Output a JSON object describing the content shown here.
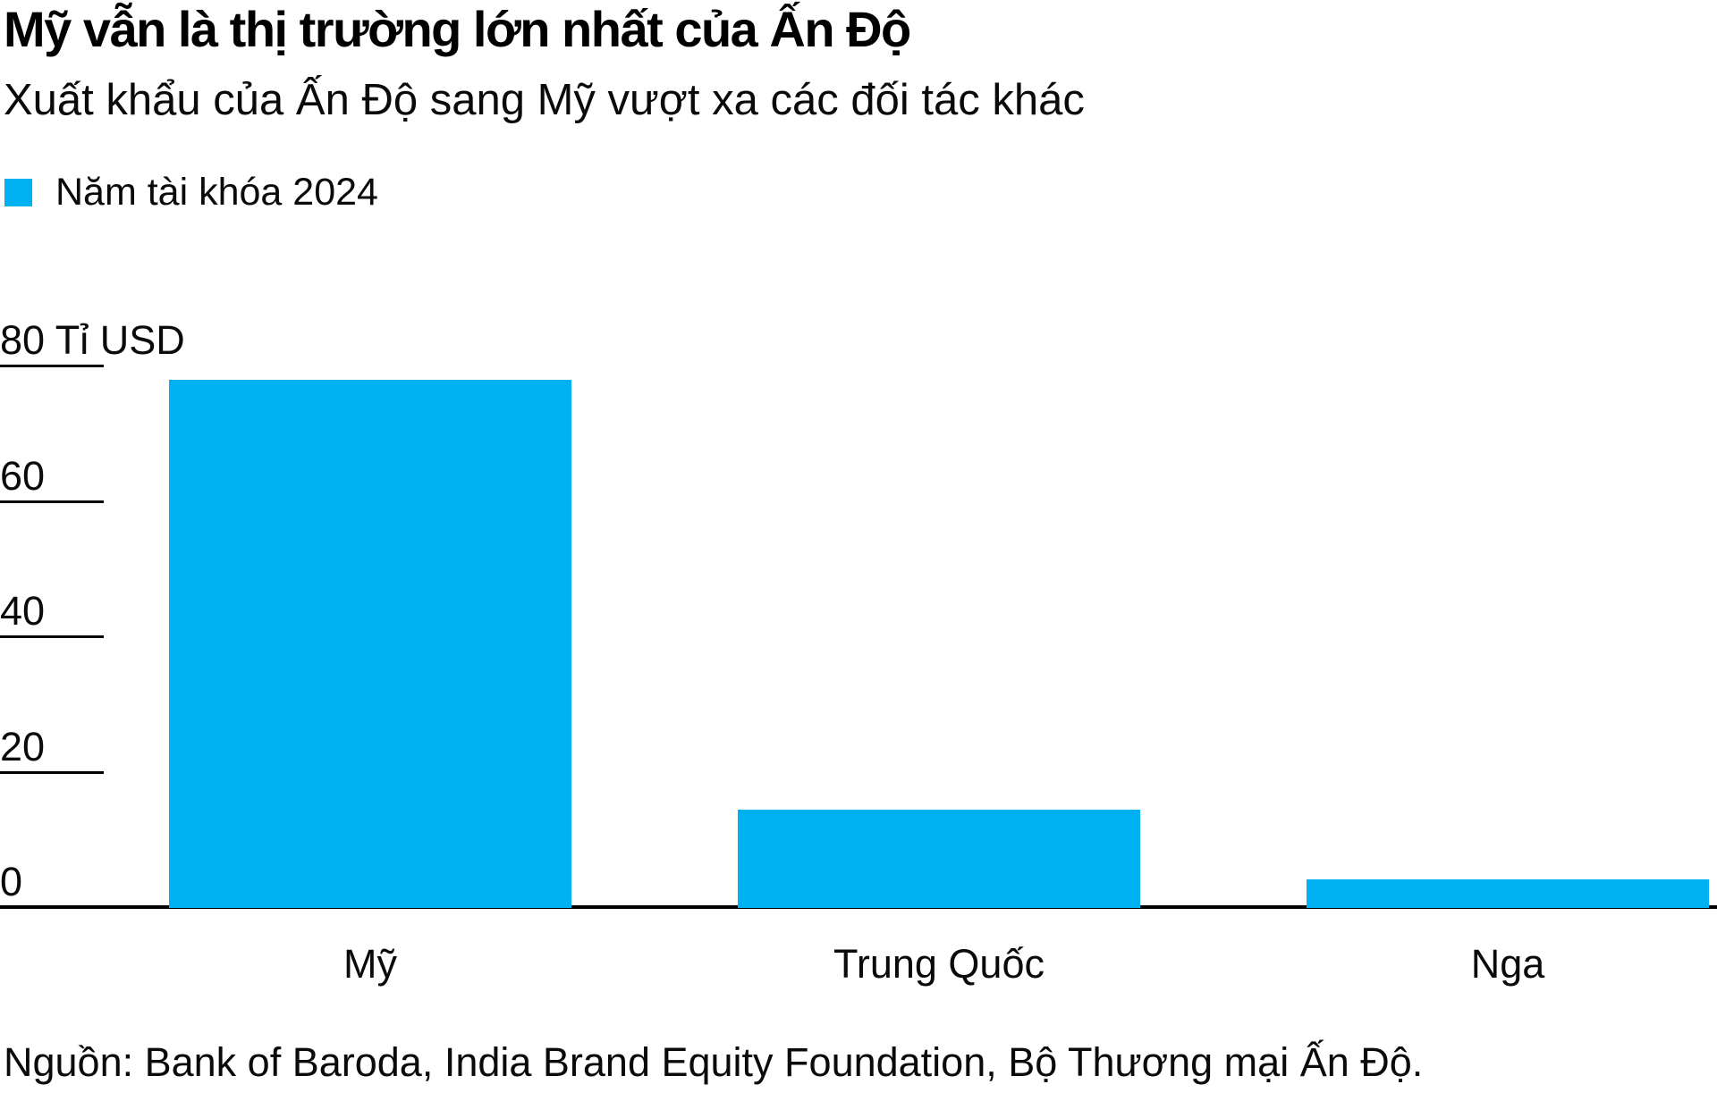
{
  "header": {
    "title": "Mỹ vẫn là thị trường lớn nhất của Ấn Độ",
    "subtitle": "Xuất khẩu của Ấn Độ sang Mỹ vượt xa các đối tác khác"
  },
  "legend": {
    "label": "Năm tài khóa 2024",
    "color": "#00b1f1"
  },
  "footer": {
    "source": "Nguồn: Bank of Baroda, India Brand Equity Foundation, Bộ Thương mại Ấn Độ."
  },
  "chart_data": {
    "type": "bar",
    "title": "Mỹ vẫn là thị trường lớn nhất của Ấn Độ",
    "subtitle": "Xuất khẩu của Ấn Độ sang Mỹ vượt xa các đối tác khác",
    "series_name": "Năm tài khóa 2024",
    "categories": [
      "Mỹ",
      "Trung Quốc",
      "Nga"
    ],
    "values": [
      78,
      14.5,
      4.2
    ],
    "unit": "Tỉ USD",
    "bar_color": "#00b1f1",
    "ylim": [
      0,
      80
    ],
    "yticks": [
      {
        "value": 0,
        "label": "0"
      },
      {
        "value": 20,
        "label": "20"
      },
      {
        "value": 40,
        "label": "40"
      },
      {
        "value": 60,
        "label": "60"
      },
      {
        "value": 80,
        "label": "80 Tỉ USD"
      }
    ],
    "grid": "short-left-tick-stubs",
    "legend_position": "top-left",
    "source": "Nguồn: Bank of Baroda, India Brand Equity Foundation, Bộ Thương mại Ấn Độ."
  }
}
